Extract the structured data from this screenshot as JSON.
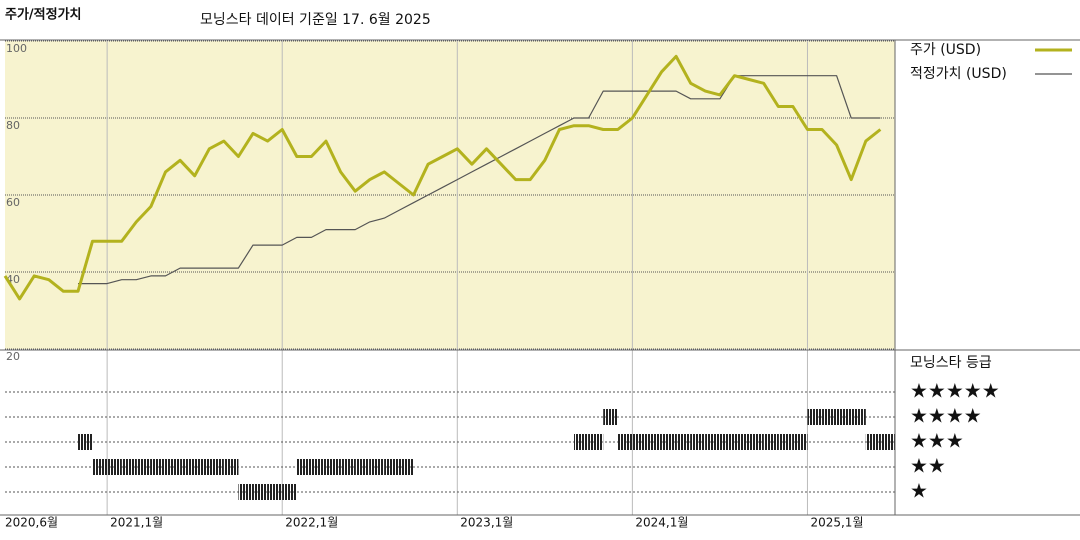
{
  "chart_data": {
    "type": "line",
    "title": "주가/적정가치",
    "subtitle": "모닝스타 데이터 기준일 17. 6월 2025",
    "x": [
      "2020-06",
      "2020-07",
      "2020-08",
      "2020-09",
      "2020-10",
      "2020-11",
      "2020-12",
      "2021-01",
      "2021-02",
      "2021-03",
      "2021-04",
      "2021-05",
      "2021-06",
      "2021-07",
      "2021-08",
      "2021-09",
      "2021-10",
      "2021-11",
      "2021-12",
      "2022-01",
      "2022-02",
      "2022-03",
      "2022-04",
      "2022-05",
      "2022-06",
      "2022-07",
      "2022-08",
      "2022-09",
      "2022-10",
      "2022-11",
      "2022-12",
      "2023-01",
      "2023-02",
      "2023-03",
      "2023-04",
      "2023-05",
      "2023-06",
      "2023-07",
      "2023-08",
      "2023-09",
      "2023-10",
      "2023-11",
      "2023-12",
      "2024-01",
      "2024-02",
      "2024-03",
      "2024-04",
      "2024-05",
      "2024-06",
      "2024-07",
      "2024-08",
      "2024-09",
      "2024-10",
      "2024-11",
      "2024-12",
      "2025-01",
      "2025-02",
      "2025-03",
      "2025-04",
      "2025-05",
      "2025-06"
    ],
    "series": [
      {
        "name": "주가 (USD)",
        "color": "#b3b21e",
        "values": [
          39,
          33,
          39,
          38,
          35,
          35,
          48,
          48,
          48,
          53,
          57,
          66,
          69,
          65,
          72,
          74,
          70,
          76,
          74,
          77,
          70,
          70,
          74,
          66,
          61,
          64,
          66,
          63,
          60,
          68,
          70,
          72,
          68,
          72,
          68,
          64,
          64,
          69,
          77,
          78,
          78,
          77,
          77,
          80,
          86,
          92,
          96,
          89,
          87,
          86,
          91,
          90,
          89,
          83,
          83,
          77,
          77,
          73,
          64,
          74,
          77
        ]
      },
      {
        "name": "적정가치 (USD)",
        "color": "#555555",
        "values": [
          null,
          null,
          null,
          null,
          null,
          37,
          37,
          37,
          38,
          38,
          39,
          39,
          41,
          41,
          41,
          41,
          41,
          47,
          47,
          47,
          49,
          49,
          51,
          51,
          51,
          53,
          54,
          56,
          58,
          60,
          62,
          64,
          66,
          68,
          70,
          72,
          74,
          76,
          78,
          80,
          80,
          87,
          87,
          87,
          87,
          87,
          87,
          85,
          85,
          85,
          91,
          91,
          91,
          91,
          91,
          91,
          91,
          91,
          80,
          80,
          80
        ]
      }
    ],
    "xlim": [
      "2020-06",
      "2025-07"
    ],
    "xticks": [
      {
        "value": "2020-06",
        "label": "2020,6월"
      },
      {
        "value": "2021-01",
        "label": "2021,1월"
      },
      {
        "value": "2022-01",
        "label": "2022,1월"
      },
      {
        "value": "2023-01",
        "label": "2023,1월"
      },
      {
        "value": "2024-01",
        "label": "2024,1월"
      },
      {
        "value": "2025-01",
        "label": "2025,1월"
      }
    ],
    "ylim": [
      20,
      100
    ],
    "yticks": [
      20,
      40,
      60,
      80,
      100
    ],
    "grid": true,
    "background": "#f7f3cf",
    "rating": {
      "title": "모닝스타 등급",
      "color": "#222222",
      "ticks": [
        {
          "value": 5,
          "label": "★★★★★"
        },
        {
          "value": 4,
          "label": "★★★★"
        },
        {
          "value": 3,
          "label": "★★★"
        },
        {
          "value": 2,
          "label": "★★"
        },
        {
          "value": 1,
          "label": "★"
        }
      ],
      "values": [
        null,
        null,
        null,
        null,
        null,
        3,
        2,
        2,
        2,
        2,
        2,
        2,
        2,
        2,
        2,
        2,
        1,
        1,
        1,
        1,
        2,
        2,
        2,
        2,
        2,
        2,
        2,
        2,
        null,
        null,
        null,
        null,
        null,
        null,
        null,
        null,
        null,
        null,
        null,
        3,
        3,
        4,
        3,
        3,
        3,
        3,
        3,
        3,
        3,
        3,
        3,
        3,
        3,
        3,
        3,
        4,
        4,
        4,
        4,
        3,
        3
      ]
    }
  }
}
